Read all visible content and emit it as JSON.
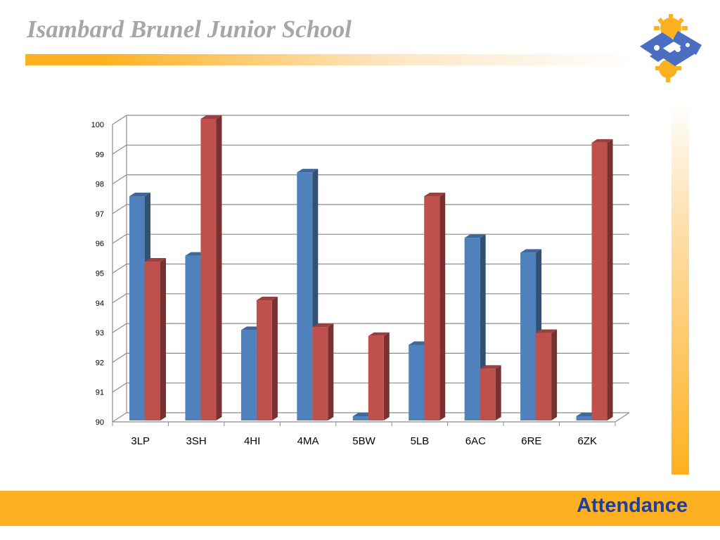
{
  "header": {
    "title": "Isambard Brunel Junior School",
    "logo_icon": "school-gear-logo-icon"
  },
  "footer": {
    "label": "Attendance"
  },
  "colors": {
    "accent_orange": "#fdb121",
    "title_grey": "#a6a6a6",
    "footer_text": "#1f3fa0",
    "logo_blue": "#4a6fc2",
    "logo_yellow": "#fdb121"
  },
  "chart_data": {
    "type": "bar",
    "style": "3d-clustered-column",
    "categories": [
      "3LP",
      "3SH",
      "4HI",
      "4MA",
      "5BW",
      "5LB",
      "6AC",
      "6RE",
      "6ZK"
    ],
    "series": [
      {
        "values": [
          97.4,
          95.4,
          92.9,
          98.2,
          90.0,
          92.4,
          96.0,
          95.5,
          90.0
        ],
        "color": "#4f81bd"
      },
      {
        "values": [
          95.2,
          100.0,
          93.9,
          93.0,
          92.7,
          97.4,
          91.6,
          92.8,
          99.2
        ],
        "color": "#c0504d"
      }
    ],
    "yticks": [
      90,
      91,
      92,
      93,
      94,
      95,
      96,
      97,
      98,
      99,
      100
    ],
    "ylim": [
      90,
      100
    ],
    "grid": true,
    "legend": "none"
  }
}
